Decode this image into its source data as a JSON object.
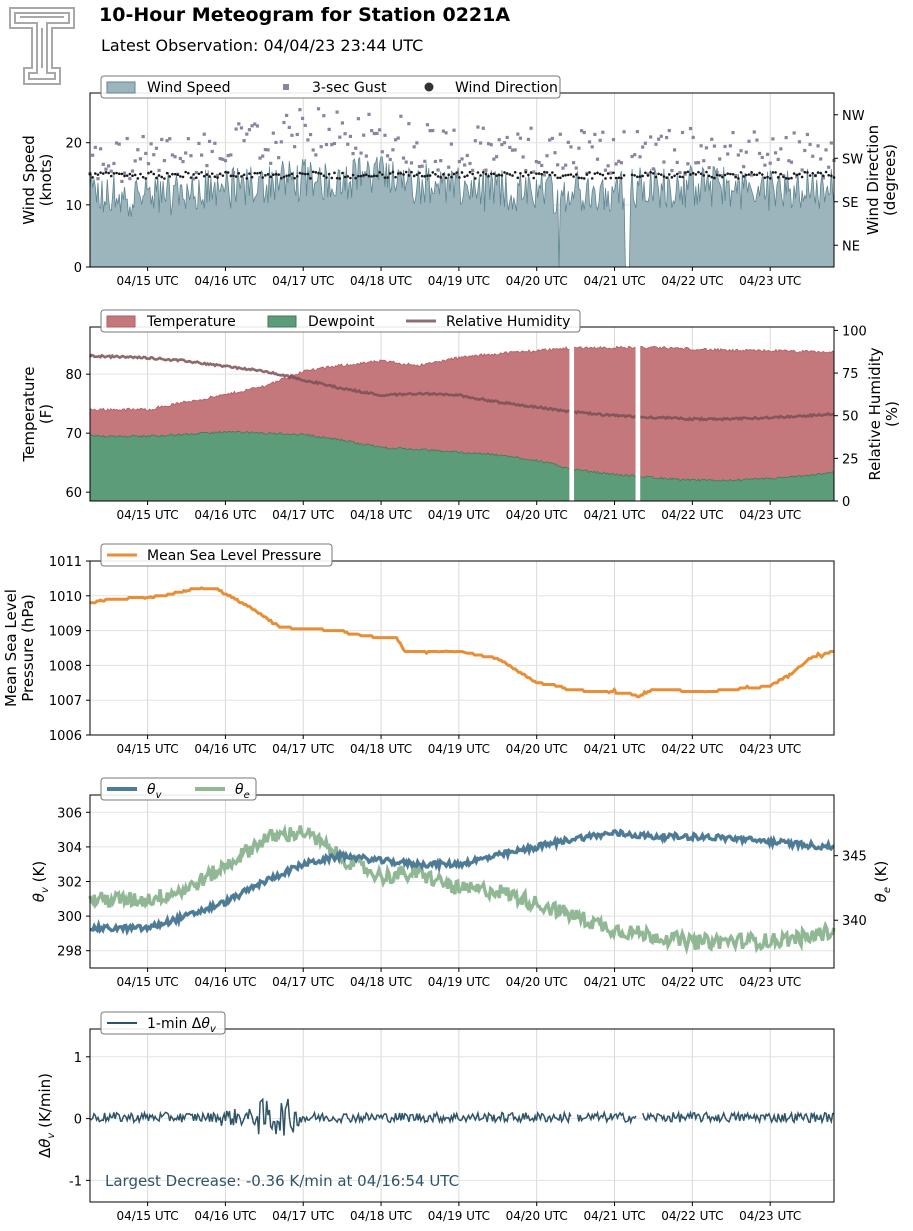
{
  "header": {
    "title": "10-Hour Meteogram for Station 0221A",
    "subtitle": "Latest Observation: 04/04/23 23:44 UTC"
  },
  "colors": {
    "wind": "#9cb5bd",
    "wind_edge": "#5f8590",
    "gust": "#8a84a0",
    "direction": "#1a1a1a",
    "temperature": "#c4787c",
    "dewpoint": "#5c9c79",
    "rh": "#8c6f72",
    "pressure": "#e88e35",
    "theta_v": "#4e7c96",
    "theta_e": "#90b895",
    "delta": "#2e5468",
    "annotation": "#2e5468",
    "logo": "#a8a8a8"
  },
  "time_ticks": [
    "04/15 UTC",
    "04/16 UTC",
    "04/17 UTC",
    "04/18 UTC",
    "04/19 UTC",
    "04/20 UTC",
    "04/21 UTC",
    "04/22 UTC",
    "04/23 UTC"
  ],
  "chart_data": [
    {
      "id": "wind",
      "type": "area",
      "ylabel": "Wind Speed\n(knots)",
      "y2label": "Wind Direction\n(degrees)",
      "ylim": [
        0,
        28
      ],
      "yticks": [
        0,
        10,
        20
      ],
      "y2ticks": [
        {
          "label": "NE",
          "value": 45
        },
        {
          "label": "SE",
          "value": 135
        },
        {
          "label": "SW",
          "value": 225
        },
        {
          "label": "NW",
          "value": 315
        }
      ],
      "y2lim": [
        0,
        360
      ],
      "legend": [
        "Wind Speed",
        "3-sec Gust",
        "Wind Direction"
      ],
      "gaps": [
        [
          5.27,
          5.3
        ],
        [
          6.13,
          6.2
        ]
      ],
      "series": [
        {
          "name": "Wind Speed",
          "type": "area",
          "base": 12.0,
          "amp": 3.5,
          "range": [
            0,
            9.55
          ],
          "values_note": ""
        },
        {
          "name": "3-sec Gust",
          "type": "scatter",
          "range": [
            0,
            9.55
          ]
        },
        {
          "name": "Wind Direction",
          "type": "scatter",
          "range": [
            0,
            9.55
          ],
          "typical": 190
        }
      ],
      "keypoints": {
        "speed": [
          [
            -0.7,
            11.5
          ],
          [
            0,
            11.5
          ],
          [
            1,
            12.5
          ],
          [
            2,
            14
          ],
          [
            3,
            14.5
          ],
          [
            4,
            12.5
          ],
          [
            5,
            12.0
          ],
          [
            6,
            12.5
          ],
          [
            7,
            13
          ],
          [
            8,
            12.5
          ],
          [
            8.8,
            12.5
          ]
        ],
        "gust": [
          [
            -0.7,
            15
          ],
          [
            1,
            17
          ],
          [
            2,
            20
          ],
          [
            3,
            20
          ],
          [
            4,
            17
          ],
          [
            5,
            17
          ],
          [
            6,
            17
          ],
          [
            7,
            17
          ],
          [
            8.8,
            16
          ]
        ]
      }
    },
    {
      "id": "thermo",
      "type": "area",
      "ylabel": "Temperature\n(F)",
      "y2label": "Relative Humidity\n(%)",
      "ylim": [
        58.5,
        88
      ],
      "yticks": [
        60,
        70,
        80
      ],
      "y2lim": [
        0,
        102
      ],
      "y2ticks": [
        0,
        25,
        50,
        75,
        100
      ],
      "legend": [
        "Temperature",
        "Dewpoint",
        "Relative Humidity"
      ],
      "gaps": [
        [
          5.42,
          5.48
        ],
        [
          6.27,
          6.33
        ]
      ],
      "series": [
        {
          "name": "Temperature",
          "points": [
            [
              -0.7,
              74
            ],
            [
              0,
              74
            ],
            [
              0.5,
              75.3
            ],
            [
              1,
              76.5
            ],
            [
              1.5,
              78
            ],
            [
              2,
              80.5
            ],
            [
              2.5,
              81.5
            ],
            [
              3,
              82.2
            ],
            [
              3.5,
              81.5
            ],
            [
              4,
              82.8
            ],
            [
              4.5,
              83.5
            ],
            [
              5,
              84
            ],
            [
              5.5,
              84.5
            ],
            [
              6,
              84.5
            ],
            [
              6.5,
              84.5
            ],
            [
              7,
              84.3
            ],
            [
              7.5,
              84
            ],
            [
              8,
              84
            ],
            [
              8.5,
              83.8
            ],
            [
              8.8,
              83.7
            ]
          ]
        },
        {
          "name": "Dewpoint",
          "points": [
            [
              -0.7,
              69.5
            ],
            [
              0,
              69.5
            ],
            [
              0.5,
              69.8
            ],
            [
              1,
              70.2
            ],
            [
              1.5,
              70
            ],
            [
              2,
              69.8
            ],
            [
              2.5,
              68.8
            ],
            [
              3,
              67.6
            ],
            [
              3.5,
              67.2
            ],
            [
              4,
              66.8
            ],
            [
              4.5,
              66.3
            ],
            [
              5,
              65.4
            ],
            [
              5.5,
              63.8
            ],
            [
              6,
              63
            ],
            [
              6.5,
              62.5
            ],
            [
              7,
              62
            ],
            [
              7.5,
              62
            ],
            [
              8,
              62.3
            ],
            [
              8.5,
              62.8
            ],
            [
              8.8,
              63.3
            ]
          ]
        },
        {
          "name": "Relative Humidity",
          "points": [
            [
              -0.7,
              85
            ],
            [
              0,
              84
            ],
            [
              0.5,
              82
            ],
            [
              1,
              79
            ],
            [
              1.5,
              76
            ],
            [
              2,
              71
            ],
            [
              2.5,
              66
            ],
            [
              3,
              62
            ],
            [
              3.5,
              63
            ],
            [
              4,
              62
            ],
            [
              4.5,
              58
            ],
            [
              5,
              55
            ],
            [
              5.5,
              52
            ],
            [
              6,
              50
            ],
            [
              6.5,
              49
            ],
            [
              7,
              48
            ],
            [
              7.5,
              48
            ],
            [
              8,
              49
            ],
            [
              8.5,
              50
            ],
            [
              8.8,
              51
            ]
          ]
        }
      ]
    },
    {
      "id": "pressure",
      "type": "line",
      "ylabel": "Mean Sea Level\nPressure (hPa)",
      "ylim": [
        1006,
        1011
      ],
      "yticks": [
        1006,
        1007,
        1008,
        1009,
        1010,
        1011
      ],
      "legend": [
        "Mean Sea Level Pressure"
      ],
      "series": [
        {
          "name": "Mean Sea Level Pressure",
          "points": [
            [
              -0.7,
              1009.8
            ],
            [
              -0.5,
              1009.9
            ],
            [
              0,
              1009.95
            ],
            [
              0.2,
              1010.0
            ],
            [
              0.4,
              1010.1
            ],
            [
              0.6,
              1010.2
            ],
            [
              0.9,
              1010.2
            ],
            [
              1.0,
              1010.05
            ],
            [
              1.3,
              1009.7
            ],
            [
              1.5,
              1009.4
            ],
            [
              1.7,
              1009.1
            ],
            [
              2.0,
              1009.05
            ],
            [
              2.5,
              1009.0
            ],
            [
              2.6,
              1008.9
            ],
            [
              3.0,
              1008.8
            ],
            [
              3.2,
              1008.8
            ],
            [
              3.3,
              1008.4
            ],
            [
              4.0,
              1008.4
            ],
            [
              4.5,
              1008.2
            ],
            [
              5.0,
              1007.5
            ],
            [
              5.3,
              1007.4
            ],
            [
              5.4,
              1007.3
            ],
            [
              6.2,
              1007.2
            ],
            [
              6.3,
              1007.1
            ],
            [
              6.5,
              1007.3
            ],
            [
              7.2,
              1007.25
            ],
            [
              8.0,
              1007.4
            ],
            [
              8.3,
              1007.8
            ],
            [
              8.5,
              1008.2
            ],
            [
              8.8,
              1008.4
            ]
          ]
        }
      ]
    },
    {
      "id": "theta",
      "type": "line",
      "ylabel": "θv (K)",
      "y2label": "θe (K)",
      "ylim": [
        297,
        307
      ],
      "yticks": [
        298,
        300,
        302,
        304,
        306
      ],
      "y2lim": [
        336.3,
        349.7
      ],
      "y2ticks": [
        340,
        345
      ],
      "legend": [
        "θv",
        "θe"
      ],
      "series": [
        {
          "name": "θv",
          "points": [
            [
              -0.7,
              299.3
            ],
            [
              0,
              299.3
            ],
            [
              0.5,
              300.0
            ],
            [
              1,
              300.8
            ],
            [
              1.5,
              302.0
            ],
            [
              2,
              303.0
            ],
            [
              2.5,
              303.5
            ],
            [
              3,
              303.2
            ],
            [
              3.5,
              303.0
            ],
            [
              4,
              303.0
            ],
            [
              4.5,
              303.5
            ],
            [
              5,
              304.0
            ],
            [
              5.5,
              304.5
            ],
            [
              6,
              304.8
            ],
            [
              6.5,
              304.6
            ],
            [
              7,
              304.6
            ],
            [
              7.5,
              304.5
            ],
            [
              8,
              304.3
            ],
            [
              8.5,
              304.1
            ],
            [
              8.8,
              304.0
            ]
          ]
        },
        {
          "name": "θe",
          "points": [
            [
              -0.7,
              341.6
            ],
            [
              0,
              341.6
            ],
            [
              0.5,
              342.4
            ],
            [
              1,
              344.2
            ],
            [
              1.5,
              346.3
            ],
            [
              2,
              346.9
            ],
            [
              2.5,
              344.8
            ],
            [
              3,
              343.4
            ],
            [
              3.5,
              343.6
            ],
            [
              4,
              342.4
            ],
            [
              4.5,
              342.3
            ],
            [
              5,
              341.3
            ],
            [
              5.5,
              340.3
            ],
            [
              6,
              339.3
            ],
            [
              6.5,
              338.8
            ],
            [
              7,
              338.3
            ],
            [
              7.5,
              338.4
            ],
            [
              8,
              338.4
            ],
            [
              8.5,
              338.7
            ],
            [
              8.8,
              339.2
            ]
          ]
        }
      ]
    },
    {
      "id": "delta",
      "type": "line",
      "ylabel": "Δθv (K/min)",
      "ylim": [
        -1.35,
        1.45
      ],
      "yticks": [
        -1,
        0,
        1
      ],
      "legend": [
        "1-min Δθv"
      ],
      "annotation": "Largest Decrease: -0.36 K/min at 04/16:54 UTC",
      "series": [
        {
          "name": "1-min Δθv",
          "baseline": 0.02
        }
      ]
    }
  ]
}
